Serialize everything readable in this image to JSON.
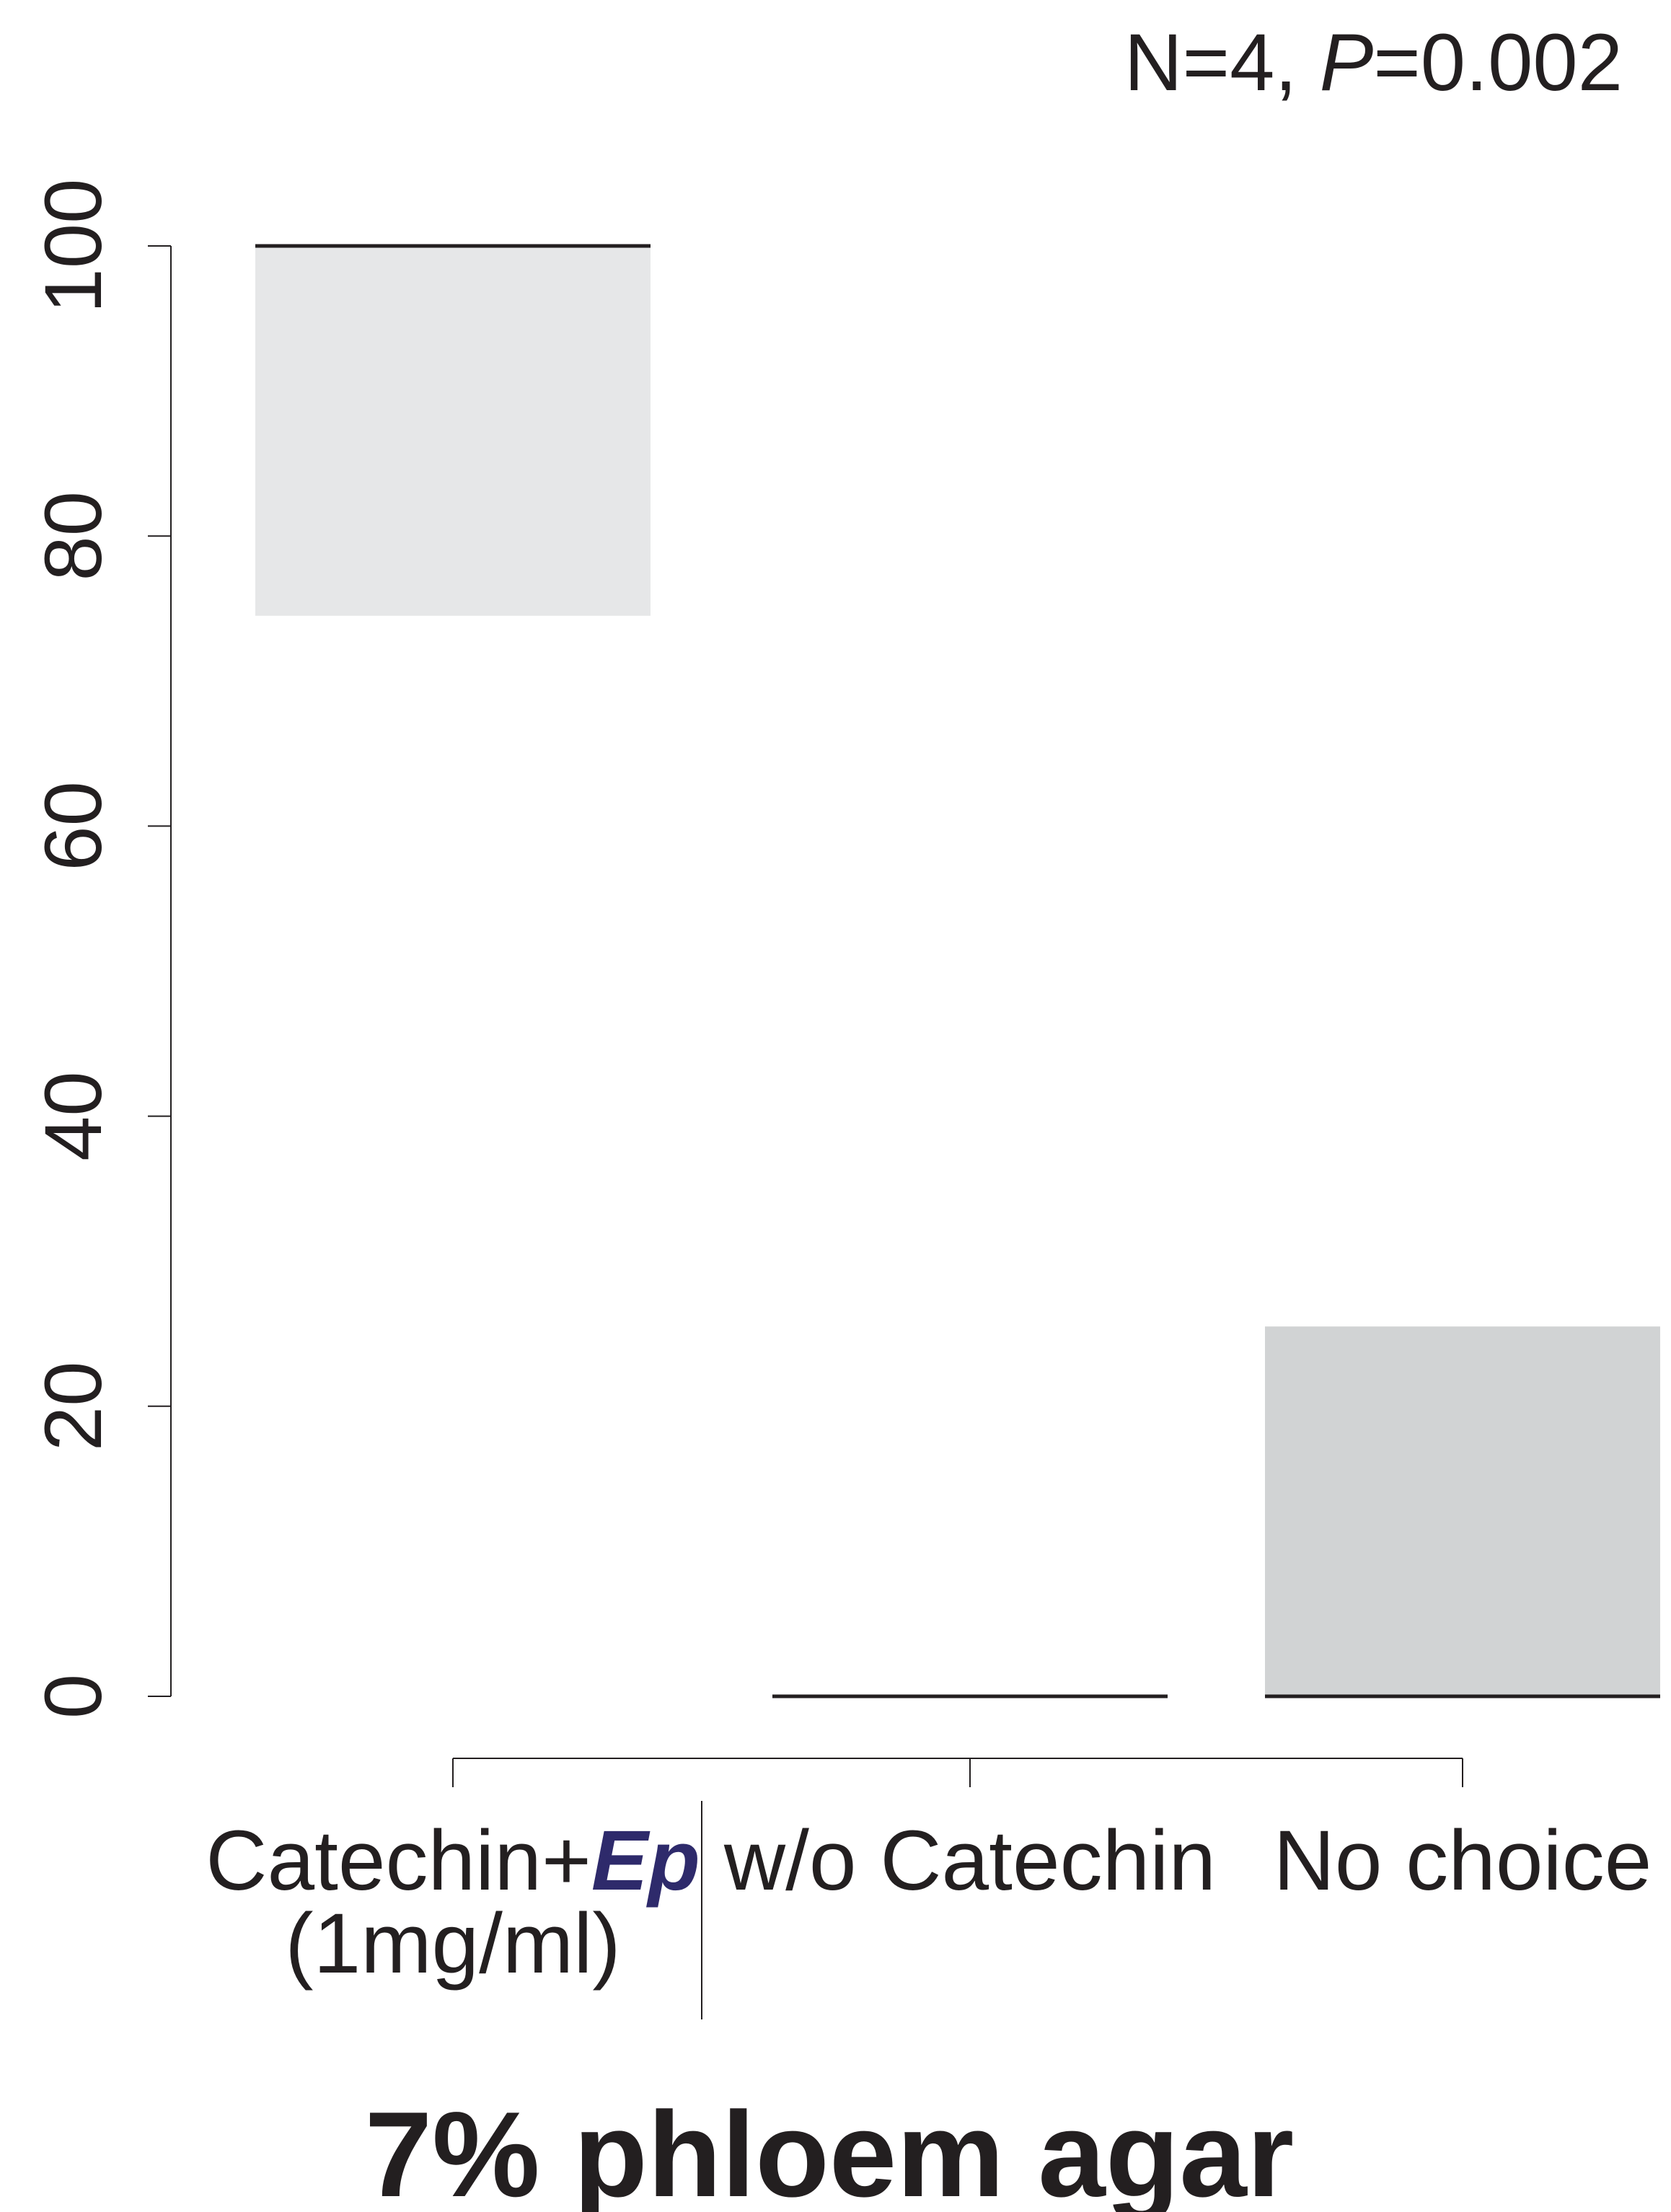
{
  "chart_data": {
    "type": "box",
    "title": "7% phloem agar",
    "annotation": {
      "prefix": "N=4, ",
      "p_symbol": "P",
      "p_value": "=0.002"
    },
    "xlabel": "",
    "ylabel": "",
    "ylim": [
      0,
      100
    ],
    "yticks": [
      0,
      20,
      40,
      60,
      80,
      100
    ],
    "categories": [
      {
        "lines": [
          {
            "text": "Catechin+",
            "emphasis": "Ep"
          },
          {
            "text": "(1mg/ml)"
          }
        ]
      },
      {
        "lines": [
          {
            "text": "w/o Catechin"
          }
        ]
      },
      {
        "lines": [
          {
            "text": "No choice"
          }
        ]
      }
    ],
    "boxes": [
      {
        "category": 0,
        "q1": 74.5,
        "median": 100,
        "q3": 100,
        "fill": "#e6e7e8"
      },
      {
        "category": 1,
        "q1": 0,
        "median": 0,
        "q3": 0,
        "fill": "#ffffff"
      },
      {
        "category": 2,
        "q1": 0,
        "median": 0,
        "q3": 25.5,
        "fill": "#d1d3d4"
      }
    ],
    "grid": false,
    "colors": {
      "text": "#231f20",
      "emphasis": "#2e2a6b",
      "axis": "#231f20"
    }
  }
}
